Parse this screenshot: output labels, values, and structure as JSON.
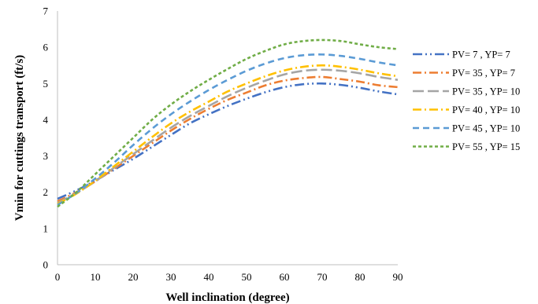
{
  "chart_data": {
    "type": "line",
    "title": "",
    "xlabel": "Well inclination (degree)",
    "ylabel": "Vmin for cuttings transport (ft/s)",
    "xlim": [
      0,
      90
    ],
    "ylim": [
      0,
      7
    ],
    "x_ticks": [
      0,
      10,
      20,
      30,
      40,
      50,
      60,
      70,
      80,
      90
    ],
    "y_ticks": [
      0,
      1,
      2,
      3,
      4,
      5,
      6,
      7
    ],
    "grid": false,
    "legend_position": "right",
    "series": [
      {
        "name": "PV= 7 , YP= 7",
        "color": "#4472C4",
        "dash": "dash-dot-dot",
        "x": [
          0,
          5,
          10,
          15,
          20,
          25,
          30,
          35,
          40,
          45,
          50,
          55,
          60,
          65,
          70,
          75,
          80,
          85,
          90
        ],
        "y": [
          1.82,
          2.05,
          2.32,
          2.62,
          2.92,
          3.25,
          3.58,
          3.9,
          4.15,
          4.38,
          4.58,
          4.76,
          4.9,
          4.98,
          5.0,
          4.96,
          4.88,
          4.78,
          4.7
        ]
      },
      {
        "name": "PV= 35 , YP= 7",
        "color": "#ED7D31",
        "dash": "dash-dot",
        "x": [
          0,
          5,
          10,
          15,
          20,
          25,
          30,
          35,
          40,
          45,
          50,
          55,
          60,
          65,
          70,
          75,
          80,
          85,
          90
        ],
        "y": [
          1.75,
          2.0,
          2.3,
          2.65,
          3.0,
          3.35,
          3.7,
          4.02,
          4.3,
          4.55,
          4.75,
          4.95,
          5.08,
          5.15,
          5.18,
          5.12,
          5.05,
          4.95,
          4.9
        ]
      },
      {
        "name": "PV= 35 , YP= 10",
        "color": "#A5A5A5",
        "dash": "long-dash",
        "x": [
          0,
          5,
          10,
          15,
          20,
          25,
          30,
          35,
          40,
          45,
          50,
          55,
          60,
          65,
          70,
          75,
          80,
          85,
          90
        ],
        "y": [
          1.7,
          1.98,
          2.3,
          2.68,
          3.05,
          3.42,
          3.78,
          4.1,
          4.38,
          4.65,
          4.88,
          5.08,
          5.25,
          5.35,
          5.38,
          5.35,
          5.28,
          5.18,
          5.1
        ]
      },
      {
        "name": "PV= 40 , YP= 10",
        "color": "#FFC000",
        "dash": "dash-dot",
        "x": [
          0,
          5,
          10,
          15,
          20,
          25,
          30,
          35,
          40,
          45,
          50,
          55,
          60,
          65,
          70,
          75,
          80,
          85,
          90
        ],
        "y": [
          1.68,
          1.96,
          2.32,
          2.72,
          3.12,
          3.52,
          3.9,
          4.22,
          4.5,
          4.78,
          5.0,
          5.2,
          5.36,
          5.46,
          5.5,
          5.46,
          5.38,
          5.28,
          5.2
        ]
      },
      {
        "name": "PV= 45 , YP= 10",
        "color": "#5B9BD5",
        "dash": "dashed",
        "x": [
          0,
          5,
          10,
          15,
          20,
          25,
          30,
          35,
          40,
          45,
          50,
          55,
          60,
          65,
          70,
          75,
          80,
          85,
          90
        ],
        "y": [
          1.65,
          1.98,
          2.38,
          2.82,
          3.3,
          3.75,
          4.15,
          4.5,
          4.82,
          5.1,
          5.35,
          5.55,
          5.7,
          5.78,
          5.8,
          5.76,
          5.68,
          5.58,
          5.5
        ]
      },
      {
        "name": "PV= 55 , YP= 15",
        "color": "#70AD47",
        "dash": "dotted",
        "x": [
          0,
          5,
          10,
          15,
          20,
          25,
          30,
          35,
          40,
          45,
          50,
          55,
          60,
          65,
          70,
          75,
          80,
          85,
          90
        ],
        "y": [
          1.6,
          2.0,
          2.5,
          3.0,
          3.5,
          4.0,
          4.42,
          4.78,
          5.1,
          5.4,
          5.68,
          5.9,
          6.08,
          6.17,
          6.2,
          6.17,
          6.08,
          6.0,
          5.95
        ]
      }
    ]
  }
}
